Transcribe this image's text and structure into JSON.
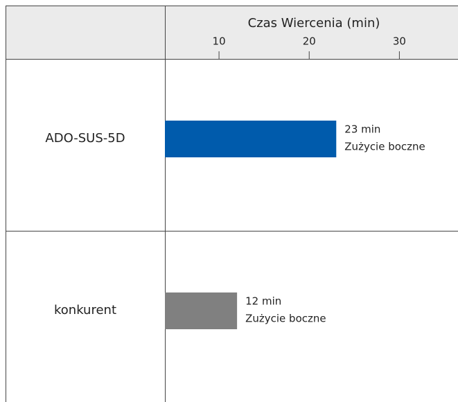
{
  "chart_data": {
    "type": "barh",
    "xlabel": "Czas Wiercenia (min)",
    "categories": [
      "ADO-SUS-5D",
      "konkurent"
    ],
    "values": [
      23,
      12
    ],
    "value_labels": [
      "23 min",
      "12 min"
    ],
    "bar_notes": [
      "Zużycie boczne",
      "Zużycie boczne"
    ],
    "colors": [
      "#005bac",
      "#808080"
    ],
    "xlim": [
      4,
      36.5
    ],
    "xticks": [
      10,
      20,
      30
    ]
  }
}
